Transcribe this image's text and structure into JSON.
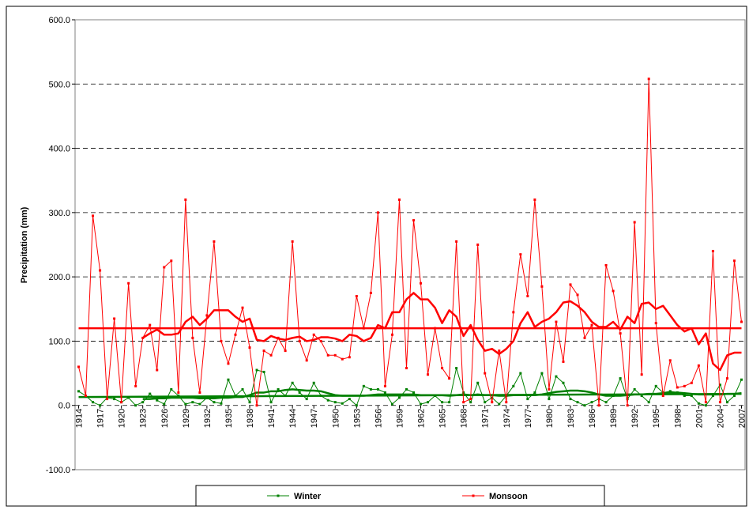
{
  "chart_data": {
    "type": "line",
    "y_label": "Precipitation (mm)",
    "x": [
      1914,
      1915,
      1916,
      1917,
      1918,
      1919,
      1920,
      1921,
      1922,
      1923,
      1924,
      1925,
      1926,
      1927,
      1928,
      1929,
      1930,
      1931,
      1932,
      1933,
      1934,
      1935,
      1936,
      1937,
      1938,
      1939,
      1940,
      1941,
      1942,
      1943,
      1944,
      1945,
      1946,
      1947,
      1948,
      1949,
      1950,
      1951,
      1952,
      1953,
      1954,
      1955,
      1956,
      1957,
      1958,
      1959,
      1960,
      1961,
      1962,
      1963,
      1964,
      1965,
      1966,
      1967,
      1968,
      1969,
      1970,
      1971,
      1972,
      1973,
      1974,
      1975,
      1976,
      1977,
      1978,
      1979,
      1980,
      1981,
      1982,
      1983,
      1984,
      1985,
      1986,
      1987,
      1988,
      1989,
      1990,
      1991,
      1992,
      1993,
      1994,
      1995,
      1996,
      1997,
      1998,
      1999,
      2000,
      2001,
      2002,
      2003,
      2004,
      2005,
      2006,
      2007
    ],
    "xlim": [
      1913.5,
      2007.5
    ],
    "xticks": [
      1914,
      1917,
      1920,
      1923,
      1926,
      1929,
      1932,
      1935,
      1938,
      1941,
      1944,
      1947,
      1950,
      1953,
      1956,
      1959,
      1962,
      1965,
      1968,
      1971,
      1974,
      1977,
      1980,
      1983,
      1986,
      1989,
      1992,
      1995,
      1998,
      2001,
      2004,
      2007
    ],
    "ylim": [
      -100,
      600
    ],
    "yticks": [
      {
        "value": -100,
        "label": "-100.0"
      },
      {
        "value": 0,
        "label": "0.0"
      },
      {
        "value": 100,
        "label": "100.0"
      },
      {
        "value": 200,
        "label": "200.0"
      },
      {
        "value": 300,
        "label": "300.0"
      },
      {
        "value": 400,
        "label": "400.0"
      },
      {
        "value": 500,
        "label": "500.0"
      },
      {
        "value": 600,
        "label": "600.0"
      }
    ],
    "grid": true,
    "series": [
      {
        "name": "Winter",
        "color": "#008000",
        "values": [
          22,
          15,
          5,
          0,
          12,
          10,
          5,
          12,
          0,
          5,
          18,
          8,
          2,
          25,
          15,
          2,
          5,
          2,
          12,
          5,
          3,
          40,
          15,
          25,
          5,
          55,
          52,
          5,
          25,
          15,
          35,
          20,
          10,
          35,
          15,
          8,
          5,
          3,
          10,
          0,
          30,
          25,
          25,
          20,
          2,
          12,
          25,
          20,
          2,
          5,
          15,
          5,
          5,
          58,
          20,
          5,
          35,
          5,
          12,
          2,
          15,
          30,
          50,
          10,
          20,
          50,
          10,
          45,
          35,
          10,
          5,
          0,
          5,
          10,
          5,
          15,
          42,
          10,
          25,
          15,
          5,
          30,
          20,
          22,
          20,
          15,
          15,
          3,
          0,
          15,
          32,
          5,
          15,
          40
        ],
        "trend": [
          null,
          null,
          null,
          null,
          null,
          null,
          null,
          null,
          null,
          10,
          10,
          11,
          11,
          12,
          12,
          12,
          12,
          11,
          11,
          11,
          12,
          12,
          13,
          13,
          16,
          20,
          20,
          22,
          22,
          24,
          25,
          24,
          23,
          23,
          22,
          19,
          16,
          15,
          15,
          15,
          15,
          16,
          17,
          17,
          17,
          17,
          17,
          17,
          16,
          16,
          16,
          16,
          15,
          16,
          17,
          16,
          17,
          16,
          16,
          15,
          15,
          16,
          16,
          16,
          16,
          17,
          19,
          21,
          22,
          23,
          23,
          22,
          20,
          17,
          15,
          15,
          15,
          16,
          17,
          17,
          18,
          18,
          19,
          20,
          20,
          19,
          18,
          17,
          17,
          17,
          17,
          18,
          18,
          19
        ],
        "mean_line": [
          13,
          18
        ]
      },
      {
        "name": "Monsoon",
        "color": "#ff0000",
        "values": [
          60,
          15,
          295,
          210,
          10,
          135,
          5,
          190,
          30,
          105,
          125,
          55,
          215,
          225,
          20,
          320,
          105,
          20,
          140,
          255,
          100,
          65,
          110,
          152,
          90,
          0,
          85,
          78,
          105,
          85,
          255,
          100,
          70,
          110,
          100,
          78,
          78,
          72,
          75,
          170,
          120,
          175,
          300,
          30,
          110,
          320,
          58,
          288,
          190,
          48,
          120,
          58,
          42,
          255,
          5,
          10,
          250,
          50,
          5,
          85,
          5,
          145,
          235,
          170,
          320,
          185,
          25,
          130,
          68,
          188,
          172,
          105,
          125,
          0,
          218,
          178,
          112,
          0,
          285,
          48,
          508,
          128,
          15,
          70,
          28,
          30,
          35,
          62,
          5,
          240,
          5,
          42,
          225,
          130
        ],
        "trend": [
          null,
          null,
          null,
          null,
          null,
          null,
          null,
          null,
          null,
          105,
          112,
          118,
          110,
          110,
          112,
          130,
          138,
          125,
          135,
          148,
          148,
          148,
          138,
          130,
          135,
          102,
          100,
          108,
          104,
          102,
          105,
          107,
          100,
          102,
          106,
          106,
          104,
          100,
          110,
          108,
          100,
          105,
          125,
          120,
          145,
          145,
          165,
          175,
          165,
          165,
          152,
          128,
          148,
          138,
          108,
          125,
          102,
          85,
          88,
          80,
          88,
          100,
          128,
          145,
          122,
          130,
          135,
          145,
          160,
          162,
          155,
          145,
          130,
          122,
          122,
          130,
          118,
          138,
          128,
          158,
          160,
          150,
          155,
          140,
          125,
          115,
          120,
          95,
          112,
          65,
          55,
          78,
          82,
          82
        ],
        "mean_line": [
          120,
          120
        ]
      }
    ]
  }
}
